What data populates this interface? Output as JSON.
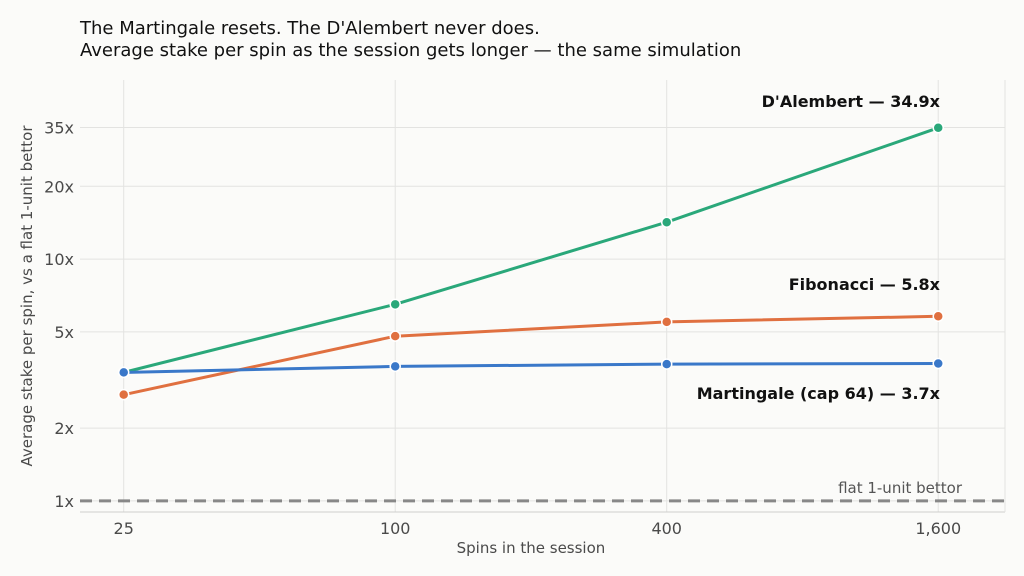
{
  "chart_data": {
    "type": "line",
    "title": "The Martingale resets. The D'Alembert never does.",
    "subtitle": "Average stake per spin as the session gets longer — the same simulation",
    "xlabel": "Spins in the session",
    "ylabel": "Average stake per spin, vs a flat 1-unit bettor",
    "x_scale": "log",
    "y_scale": "log",
    "x": [
      25,
      100,
      400,
      1600
    ],
    "x_tick_labels": [
      "25",
      "100",
      "400",
      "1,600"
    ],
    "y_ticks": [
      1,
      2,
      5,
      10,
      20,
      35
    ],
    "y_tick_labels": [
      "1x",
      "2x",
      "5x",
      "10x",
      "20x",
      "35x"
    ],
    "xlim": [
      20,
      2250
    ],
    "ylim": [
      0.9,
      55
    ],
    "grid": true,
    "series": [
      {
        "name": "D'Alembert",
        "label": "D'Alembert — 34.9x",
        "color": "#2aa87a",
        "values": [
          3.4,
          6.5,
          14.2,
          34.9
        ]
      },
      {
        "name": "Fibonacci",
        "label": "Fibonacci — 5.8x",
        "color": "#e07040",
        "values": [
          2.75,
          4.8,
          5.5,
          5.8
        ]
      },
      {
        "name": "Martingale (cap 64)",
        "label": "Martingale (cap 64) — 3.7x",
        "color": "#3a78c9",
        "values": [
          3.4,
          3.6,
          3.68,
          3.7
        ]
      }
    ],
    "reference_line": {
      "value": 1,
      "label": "flat 1-unit bettor",
      "color": "#888888"
    }
  }
}
